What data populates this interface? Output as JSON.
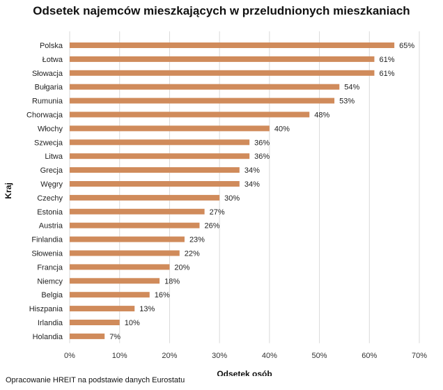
{
  "chart_data": {
    "type": "bar",
    "orientation": "horizontal",
    "title": "Odsetek najemców mieszkających w przeludnionych mieszkaniach",
    "xlabel": "Odsetek osób",
    "ylabel": "Kraj",
    "xlim": [
      0,
      70
    ],
    "xticks": [
      "0%",
      "10%",
      "20%",
      "30%",
      "40%",
      "50%",
      "60%",
      "70%"
    ],
    "grid": true,
    "bar_color": "#D08B5B",
    "categories": [
      "Polska",
      "Łotwa",
      "Słowacja",
      "Bułgaria",
      "Rumunia",
      "Chorwacja",
      "Włochy",
      "Szwecja",
      "Litwa",
      "Grecja",
      "Węgry",
      "Czechy",
      "Estonia",
      "Austria",
      "Finlandia",
      "Słowenia",
      "Francja",
      "Niemcy",
      "Belgia",
      "Hiszpania",
      "Irlandia",
      "Holandia"
    ],
    "values": [
      65,
      61,
      61,
      54,
      53,
      48,
      40,
      36,
      36,
      34,
      34,
      30,
      27,
      26,
      23,
      22,
      20,
      18,
      16,
      13,
      10,
      7
    ],
    "data_labels": [
      "65%",
      "61%",
      "61%",
      "54%",
      "53%",
      "48%",
      "40%",
      "36%",
      "36%",
      "34%",
      "34%",
      "30%",
      "27%",
      "26%",
      "23%",
      "22%",
      "20%",
      "18%",
      "16%",
      "13%",
      "10%",
      "7%"
    ]
  },
  "source": "Opracowanie HREIT na podstawie danych Eurostatu"
}
